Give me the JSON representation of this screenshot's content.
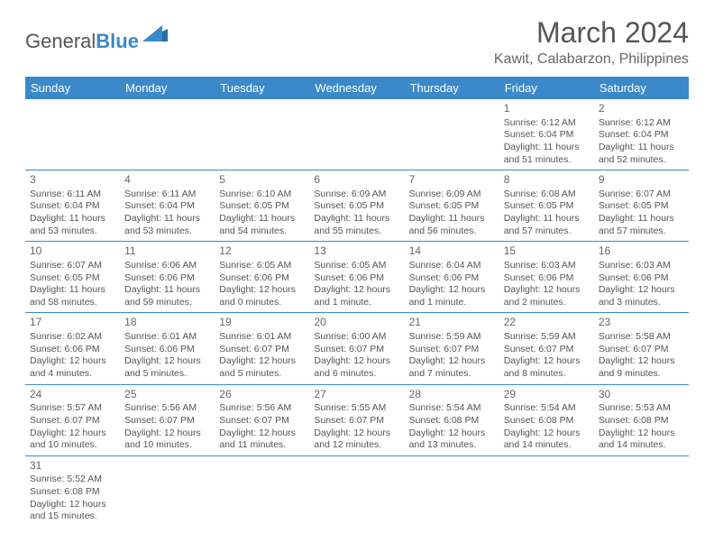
{
  "logo": {
    "text1": "General",
    "text2": "Blue"
  },
  "title": "March 2024",
  "location": "Kawit, Calabarzon, Philippines",
  "colors": {
    "header_bg": "#3b89c9",
    "header_text": "#ffffff",
    "text": "#555555",
    "border": "#3b89c9",
    "page_bg": "#ffffff"
  },
  "day_names": [
    "Sunday",
    "Monday",
    "Tuesday",
    "Wednesday",
    "Thursday",
    "Friday",
    "Saturday"
  ],
  "weeks": [
    [
      null,
      null,
      null,
      null,
      null,
      {
        "n": "1",
        "sr": "Sunrise: 6:12 AM",
        "ss": "Sunset: 6:04 PM",
        "d1": "Daylight: 11 hours",
        "d2": "and 51 minutes."
      },
      {
        "n": "2",
        "sr": "Sunrise: 6:12 AM",
        "ss": "Sunset: 6:04 PM",
        "d1": "Daylight: 11 hours",
        "d2": "and 52 minutes."
      }
    ],
    [
      {
        "n": "3",
        "sr": "Sunrise: 6:11 AM",
        "ss": "Sunset: 6:04 PM",
        "d1": "Daylight: 11 hours",
        "d2": "and 53 minutes."
      },
      {
        "n": "4",
        "sr": "Sunrise: 6:11 AM",
        "ss": "Sunset: 6:04 PM",
        "d1": "Daylight: 11 hours",
        "d2": "and 53 minutes."
      },
      {
        "n": "5",
        "sr": "Sunrise: 6:10 AM",
        "ss": "Sunset: 6:05 PM",
        "d1": "Daylight: 11 hours",
        "d2": "and 54 minutes."
      },
      {
        "n": "6",
        "sr": "Sunrise: 6:09 AM",
        "ss": "Sunset: 6:05 PM",
        "d1": "Daylight: 11 hours",
        "d2": "and 55 minutes."
      },
      {
        "n": "7",
        "sr": "Sunrise: 6:09 AM",
        "ss": "Sunset: 6:05 PM",
        "d1": "Daylight: 11 hours",
        "d2": "and 56 minutes."
      },
      {
        "n": "8",
        "sr": "Sunrise: 6:08 AM",
        "ss": "Sunset: 6:05 PM",
        "d1": "Daylight: 11 hours",
        "d2": "and 57 minutes."
      },
      {
        "n": "9",
        "sr": "Sunrise: 6:07 AM",
        "ss": "Sunset: 6:05 PM",
        "d1": "Daylight: 11 hours",
        "d2": "and 57 minutes."
      }
    ],
    [
      {
        "n": "10",
        "sr": "Sunrise: 6:07 AM",
        "ss": "Sunset: 6:05 PM",
        "d1": "Daylight: 11 hours",
        "d2": "and 58 minutes."
      },
      {
        "n": "11",
        "sr": "Sunrise: 6:06 AM",
        "ss": "Sunset: 6:06 PM",
        "d1": "Daylight: 11 hours",
        "d2": "and 59 minutes."
      },
      {
        "n": "12",
        "sr": "Sunrise: 6:05 AM",
        "ss": "Sunset: 6:06 PM",
        "d1": "Daylight: 12 hours",
        "d2": "and 0 minutes."
      },
      {
        "n": "13",
        "sr": "Sunrise: 6:05 AM",
        "ss": "Sunset: 6:06 PM",
        "d1": "Daylight: 12 hours",
        "d2": "and 1 minute."
      },
      {
        "n": "14",
        "sr": "Sunrise: 6:04 AM",
        "ss": "Sunset: 6:06 PM",
        "d1": "Daylight: 12 hours",
        "d2": "and 1 minute."
      },
      {
        "n": "15",
        "sr": "Sunrise: 6:03 AM",
        "ss": "Sunset: 6:06 PM",
        "d1": "Daylight: 12 hours",
        "d2": "and 2 minutes."
      },
      {
        "n": "16",
        "sr": "Sunrise: 6:03 AM",
        "ss": "Sunset: 6:06 PM",
        "d1": "Daylight: 12 hours",
        "d2": "and 3 minutes."
      }
    ],
    [
      {
        "n": "17",
        "sr": "Sunrise: 6:02 AM",
        "ss": "Sunset: 6:06 PM",
        "d1": "Daylight: 12 hours",
        "d2": "and 4 minutes."
      },
      {
        "n": "18",
        "sr": "Sunrise: 6:01 AM",
        "ss": "Sunset: 6:06 PM",
        "d1": "Daylight: 12 hours",
        "d2": "and 5 minutes."
      },
      {
        "n": "19",
        "sr": "Sunrise: 6:01 AM",
        "ss": "Sunset: 6:07 PM",
        "d1": "Daylight: 12 hours",
        "d2": "and 5 minutes."
      },
      {
        "n": "20",
        "sr": "Sunrise: 6:00 AM",
        "ss": "Sunset: 6:07 PM",
        "d1": "Daylight: 12 hours",
        "d2": "and 6 minutes."
      },
      {
        "n": "21",
        "sr": "Sunrise: 5:59 AM",
        "ss": "Sunset: 6:07 PM",
        "d1": "Daylight: 12 hours",
        "d2": "and 7 minutes."
      },
      {
        "n": "22",
        "sr": "Sunrise: 5:59 AM",
        "ss": "Sunset: 6:07 PM",
        "d1": "Daylight: 12 hours",
        "d2": "and 8 minutes."
      },
      {
        "n": "23",
        "sr": "Sunrise: 5:58 AM",
        "ss": "Sunset: 6:07 PM",
        "d1": "Daylight: 12 hours",
        "d2": "and 9 minutes."
      }
    ],
    [
      {
        "n": "24",
        "sr": "Sunrise: 5:57 AM",
        "ss": "Sunset: 6:07 PM",
        "d1": "Daylight: 12 hours",
        "d2": "and 10 minutes."
      },
      {
        "n": "25",
        "sr": "Sunrise: 5:56 AM",
        "ss": "Sunset: 6:07 PM",
        "d1": "Daylight: 12 hours",
        "d2": "and 10 minutes."
      },
      {
        "n": "26",
        "sr": "Sunrise: 5:56 AM",
        "ss": "Sunset: 6:07 PM",
        "d1": "Daylight: 12 hours",
        "d2": "and 11 minutes."
      },
      {
        "n": "27",
        "sr": "Sunrise: 5:55 AM",
        "ss": "Sunset: 6:07 PM",
        "d1": "Daylight: 12 hours",
        "d2": "and 12 minutes."
      },
      {
        "n": "28",
        "sr": "Sunrise: 5:54 AM",
        "ss": "Sunset: 6:08 PM",
        "d1": "Daylight: 12 hours",
        "d2": "and 13 minutes."
      },
      {
        "n": "29",
        "sr": "Sunrise: 5:54 AM",
        "ss": "Sunset: 6:08 PM",
        "d1": "Daylight: 12 hours",
        "d2": "and 14 minutes."
      },
      {
        "n": "30",
        "sr": "Sunrise: 5:53 AM",
        "ss": "Sunset: 6:08 PM",
        "d1": "Daylight: 12 hours",
        "d2": "and 14 minutes."
      }
    ],
    [
      {
        "n": "31",
        "sr": "Sunrise: 5:52 AM",
        "ss": "Sunset: 6:08 PM",
        "d1": "Daylight: 12 hours",
        "d2": "and 15 minutes."
      },
      null,
      null,
      null,
      null,
      null,
      null
    ]
  ]
}
